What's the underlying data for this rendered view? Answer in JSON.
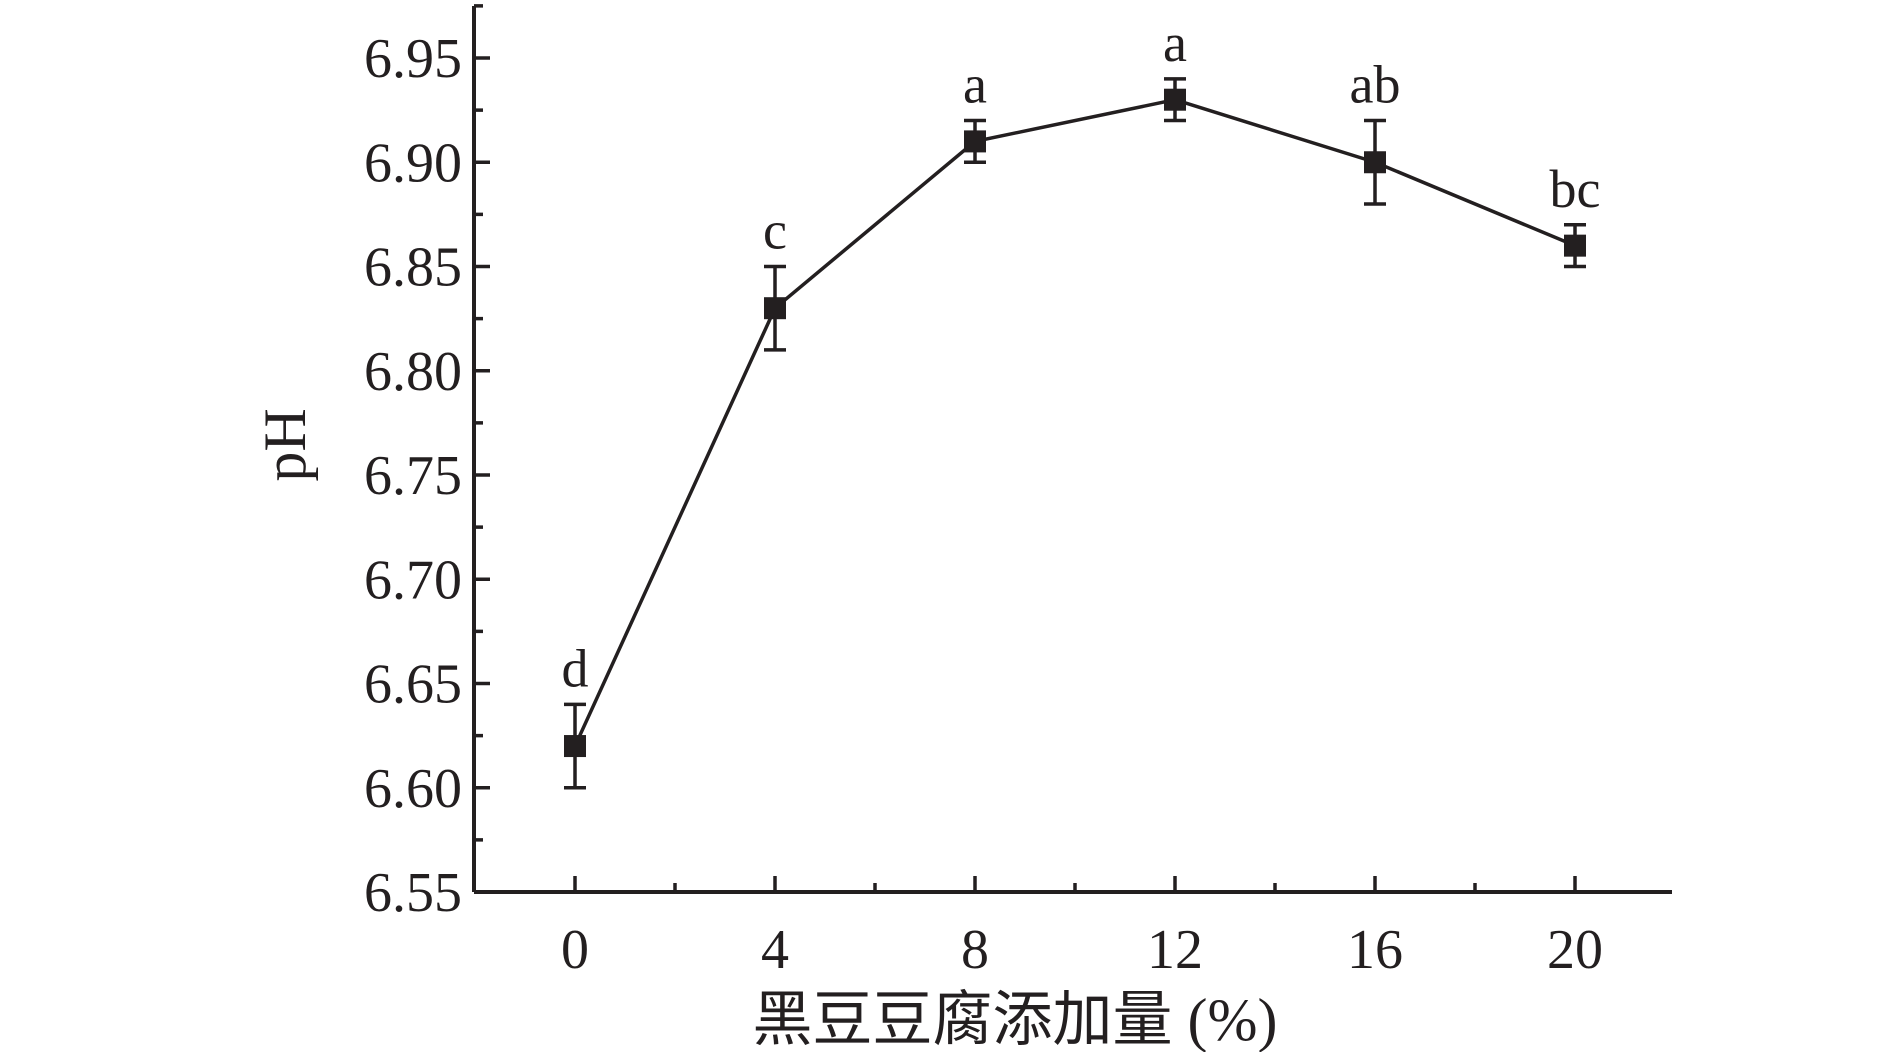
{
  "chart_data": {
    "type": "line",
    "x": [
      0,
      4,
      8,
      12,
      16,
      20
    ],
    "xticks": [
      "0",
      "4",
      "8",
      "12",
      "16",
      "20"
    ],
    "xlim": [
      -2,
      22
    ],
    "ylim": [
      6.55,
      6.97
    ],
    "yticks": [
      "6.55",
      "6.60",
      "6.65",
      "6.70",
      "6.75",
      "6.80",
      "6.85",
      "6.90",
      "6.95"
    ],
    "xlabel": "黑豆豆腐添加量 (%)",
    "ylabel": "pH",
    "title": "",
    "grid": false,
    "series": [
      {
        "values": [
          6.62,
          6.83,
          6.91,
          6.93,
          6.9,
          6.86
        ],
        "errors": [
          0.02,
          0.02,
          0.01,
          0.01,
          0.02,
          0.01
        ],
        "labels": [
          "d",
          "c",
          "a",
          "a",
          "ab",
          "bc"
        ],
        "color": "#231f20",
        "marker": "square"
      }
    ]
  }
}
